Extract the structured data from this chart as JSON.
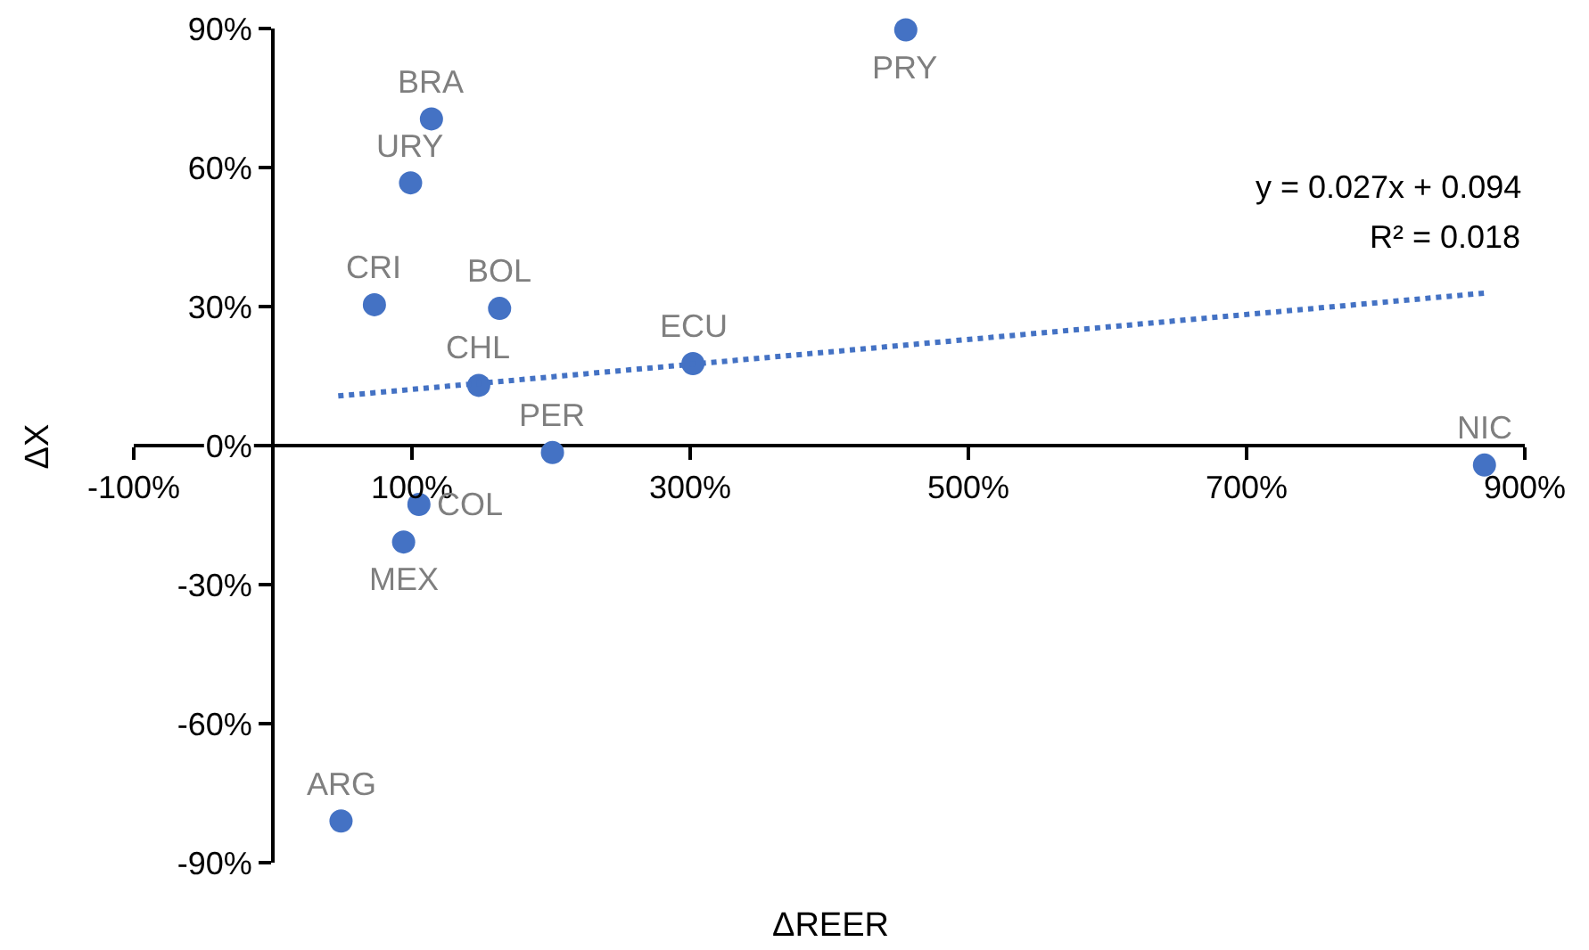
{
  "chart_data": {
    "type": "scatter",
    "xlabel": "ΔREER",
    "ylabel": "ΔX",
    "grid": false,
    "xlim": [
      -100,
      900
    ],
    "ylim": [
      -90,
      90
    ],
    "xticks": [
      {
        "value": -100,
        "label": "-100%"
      },
      {
        "value": 100,
        "label": "100%"
      },
      {
        "value": 300,
        "label": "300%"
      },
      {
        "value": 500,
        "label": "500%"
      },
      {
        "value": 700,
        "label": "700%"
      },
      {
        "value": 900,
        "label": "900%"
      }
    ],
    "yticks": [
      {
        "value": -90,
        "label": "-90%"
      },
      {
        "value": -60,
        "label": "-60%"
      },
      {
        "value": -30,
        "label": "-30%"
      },
      {
        "value": 0,
        "label": "0%"
      },
      {
        "value": 30,
        "label": "30%"
      },
      {
        "value": 60,
        "label": "60%"
      },
      {
        "value": 90,
        "label": "90%"
      }
    ],
    "series": [
      {
        "type": "scatter",
        "marker": "circle",
        "color": "#4472c4",
        "x": [
          114,
          455,
          99,
          73,
          163,
          148,
          302,
          201,
          871,
          105,
          94,
          49
        ],
        "values": [
          70.5,
          89.7,
          56.7,
          30.4,
          29.6,
          13,
          17.7,
          -1.5,
          -4.2,
          -12.7,
          -20.8,
          -81
        ]
      },
      {
        "type": "line",
        "color": "#4472c4",
        "line_style": "dotted",
        "x": [
          47,
          871
        ],
        "values": [
          10.7,
          32.9
        ]
      }
    ],
    "annotations": [
      {
        "text": "BRA",
        "x": 114,
        "y": 70.5
      },
      {
        "text": "PRY",
        "x": 455,
        "y": 89.7
      },
      {
        "text": "URY",
        "x": 99,
        "y": 56.7
      },
      {
        "text": "CRI",
        "x": 73,
        "y": 30.4
      },
      {
        "text": "BOL",
        "x": 163,
        "y": 29.6
      },
      {
        "text": "CHL",
        "x": 148,
        "y": 13
      },
      {
        "text": "ECU",
        "x": 302,
        "y": 17.7
      },
      {
        "text": "PER",
        "x": 201,
        "y": -1.5
      },
      {
        "text": "NIC",
        "x": 871,
        "y": -4.2
      },
      {
        "text": "COL",
        "x": 105,
        "y": -12.7
      },
      {
        "text": "MEX",
        "x": 94,
        "y": -20.8
      },
      {
        "text": "ARG",
        "x": 49,
        "y": -81
      },
      "y = 0.027x + 0.094",
      "R² = 0.018"
    ]
  }
}
